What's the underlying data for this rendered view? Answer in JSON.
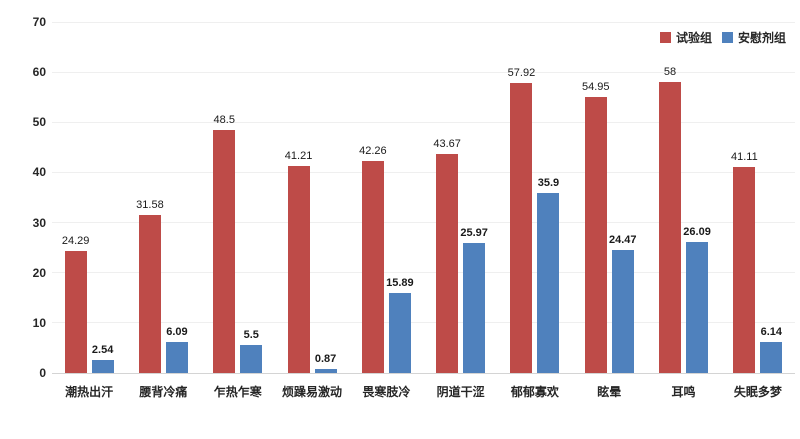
{
  "chart_data": {
    "type": "bar",
    "title": "",
    "xlabel": "",
    "ylabel": "",
    "categories": [
      "潮热出汗",
      "腰背冷痛",
      "乍热乍寒",
      "烦躁易激动",
      "畏寒肢冷",
      "阴道干涩",
      "郁郁寡欢",
      "眩晕",
      "耳鸣",
      "失眠多梦"
    ],
    "series": [
      {
        "name": "试验组",
        "color": "#BE4B48",
        "values": [
          24.29,
          31.58,
          48.5,
          41.21,
          42.26,
          43.67,
          57.92,
          54.95,
          58,
          41.11
        ]
      },
      {
        "name": "安慰剂组",
        "color": "#4F81BD",
        "values": [
          2.54,
          6.09,
          5.5,
          0.87,
          15.89,
          25.97,
          35.9,
          24.47,
          26.09,
          6.14
        ]
      }
    ],
    "ylim": [
      0,
      70
    ],
    "yticks": [
      0,
      10,
      20,
      30,
      40,
      50,
      60,
      70
    ],
    "grid": true,
    "data_labels": true,
    "legend_position": "top-right",
    "colors": {
      "background": "#FFFFFF",
      "gridline": "#EFEFEF",
      "axis_line": "#D4D4D4",
      "text": "#262626"
    }
  }
}
